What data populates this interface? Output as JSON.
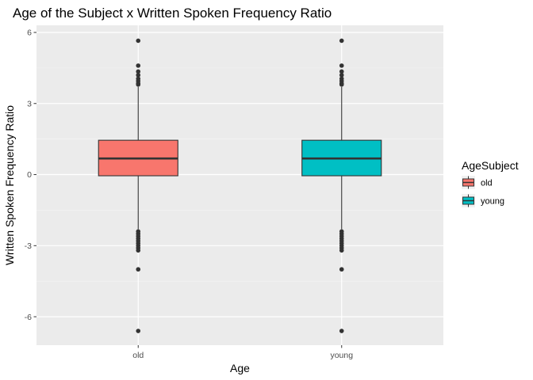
{
  "chart_data": {
    "type": "box",
    "title": "Age of the Subject x Written Spoken Frequency Ratio",
    "xlabel": "Age",
    "ylabel": "Written Spoken Frequency Ratio",
    "categories": [
      "old",
      "young"
    ],
    "ylim": [
      -7.2,
      6.3
    ],
    "yticks": [
      -6,
      -3,
      0,
      3,
      6
    ],
    "ytick_labels": [
      "-6",
      "-3",
      "0",
      "3",
      "6"
    ],
    "grid": true,
    "legend": {
      "title": "AgeSubject",
      "position": "right",
      "entries": [
        {
          "label": "old",
          "color": "#F8766D"
        },
        {
          "label": "young",
          "color": "#00BFC4"
        }
      ]
    },
    "series": [
      {
        "name": "old",
        "color": "#F8766D",
        "whisker_low": -2.3,
        "q1": -0.05,
        "median": 0.68,
        "q3": 1.45,
        "whisker_high": 3.7,
        "outliers": [
          5.65,
          4.6,
          4.35,
          4.2,
          4.05,
          3.95,
          3.85,
          3.8,
          -2.4,
          -2.5,
          -2.6,
          -2.7,
          -2.8,
          -2.9,
          -3.0,
          -3.1,
          -3.2,
          -4.0,
          -6.6
        ]
      },
      {
        "name": "young",
        "color": "#00BFC4",
        "whisker_low": -2.3,
        "q1": -0.05,
        "median": 0.68,
        "q3": 1.45,
        "whisker_high": 3.7,
        "outliers": [
          5.65,
          4.6,
          4.35,
          4.2,
          4.05,
          3.95,
          3.85,
          3.8,
          -2.4,
          -2.5,
          -2.6,
          -2.7,
          -2.8,
          -2.9,
          -3.0,
          -3.1,
          -3.2,
          -4.0,
          -6.6
        ]
      }
    ]
  },
  "colors": {
    "panel_background": "#EBEBEB",
    "grid_major": "#FFFFFF",
    "grid_minor": "#F5F5F5",
    "box_outline": "#333333",
    "outlier": "#333333"
  }
}
